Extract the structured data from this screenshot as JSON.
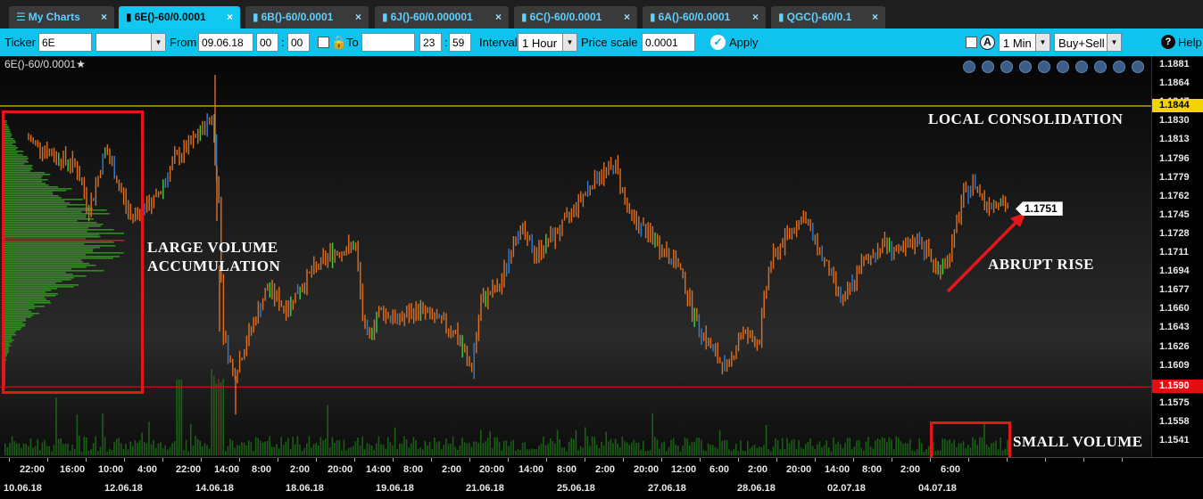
{
  "tabs": [
    {
      "label": "My Charts",
      "icon": "menu-icon",
      "active": false
    },
    {
      "label": "6E()-60/0.0001",
      "icon": "chart-icon",
      "active": true
    },
    {
      "label": "6B()-60/0.0001",
      "icon": "chart-icon",
      "active": false
    },
    {
      "label": "6J()-60/0.000001",
      "icon": "chart-icon",
      "active": false
    },
    {
      "label": "6C()-60/0.0001",
      "icon": "chart-icon",
      "active": false
    },
    {
      "label": "6A()-60/0.0001",
      "icon": "chart-icon",
      "active": false
    },
    {
      "label": "QGC()-60/0.1",
      "icon": "chart-icon",
      "active": false
    }
  ],
  "toolbar": {
    "ticker_label": "Ticker",
    "ticker_value": "6E",
    "from_label": "From",
    "from_date": "09.06.18",
    "from_hour": "00",
    "from_min": "00",
    "to_label": "To",
    "to_date": "",
    "to_hour": "23",
    "to_min": "59",
    "interval_label": "Interval",
    "interval_value": "1 Hour",
    "price_scale_label": "Price scale",
    "price_scale_value": "0.0001",
    "apply_label": "Apply",
    "timeframe_value": "1 Min",
    "side_value": "Buy+Sell",
    "help_label": "Help"
  },
  "chart": {
    "symbol_label": "6E()-60/0.0001",
    "last_price": "1.1751",
    "resistance_tag": "1.1844",
    "support_tag": "1.1590",
    "price_labels": [
      "1.1881",
      "1.1864",
      "1.1847",
      "1.1830",
      "1.1813",
      "1.1796",
      "1.1779",
      "1.1762",
      "1.1745",
      "1.1728",
      "1.1711",
      "1.1694",
      "1.1677",
      "1.1660",
      "1.1643",
      "1.1626",
      "1.1609",
      "1.1592",
      "1.1575",
      "1.1558",
      "1.1541"
    ],
    "time_labels": [
      "22:00",
      "16:00",
      "10:00",
      "4:00",
      "22:00",
      "14:00",
      "8:00",
      "2:00",
      "20:00",
      "14:00",
      "8:00",
      "2:00",
      "20:00",
      "14:00",
      "8:00",
      "2:00",
      "20:00",
      "12:00",
      "6:00",
      "2:00",
      "20:00",
      "14:00",
      "8:00",
      "2:00",
      "6:00"
    ],
    "date_labels": [
      "10.06.18",
      "12.06.18",
      "14.06.18",
      "18.06.18",
      "19.06.18",
      "21.06.18",
      "25.06.18",
      "27.06.18",
      "28.06.18",
      "02.07.18",
      "04.07.18"
    ],
    "annotations": {
      "local_consolidation": "LOCAL CONSOLIDATION",
      "large_volume_1": "LARGE VOLUME",
      "large_volume_2": "ACCUMULATION",
      "abrupt_rise": "ABRUPT RISE",
      "small_volume": "SMALL VOLUME"
    },
    "colors": {
      "resistance": "#f2d400",
      "support": "#e01010",
      "bar_up": "#e07020",
      "profile": "#2fa31a",
      "accent": "#10c3ee"
    }
  },
  "chart_data": {
    "type": "candlestick",
    "ylim": [
      1.153,
      1.189
    ],
    "levels": {
      "resistance": 1.1844,
      "support": 1.159
    },
    "last": 1.1751,
    "path": [
      [
        0,
        1.1805
      ],
      [
        30,
        1.1815
      ],
      [
        60,
        1.18
      ],
      [
        85,
        1.179
      ],
      [
        100,
        1.175
      ],
      [
        118,
        1.1805
      ],
      [
        130,
        1.178
      ],
      [
        145,
        1.1745
      ],
      [
        160,
        1.175
      ],
      [
        175,
        1.176
      ],
      [
        195,
        1.1795
      ],
      [
        215,
        1.181
      ],
      [
        238,
        1.1835
      ],
      [
        245,
        1.176
      ],
      [
        250,
        1.164
      ],
      [
        262,
        1.16
      ],
      [
        280,
        1.164
      ],
      [
        300,
        1.168
      ],
      [
        320,
        1.166
      ],
      [
        345,
        1.169
      ],
      [
        370,
        1.171
      ],
      [
        398,
        1.1718
      ],
      [
        410,
        1.163
      ],
      [
        425,
        1.166
      ],
      [
        445,
        1.165
      ],
      [
        470,
        1.166
      ],
      [
        490,
        1.165
      ],
      [
        510,
        1.164
      ],
      [
        528,
        1.1605
      ],
      [
        540,
        1.167
      ],
      [
        560,
        1.168
      ],
      [
        580,
        1.1735
      ],
      [
        600,
        1.171
      ],
      [
        630,
        1.1735
      ],
      [
        650,
        1.176
      ],
      [
        668,
        1.178
      ],
      [
        690,
        1.179
      ],
      [
        705,
        1.1745
      ],
      [
        730,
        1.1725
      ],
      [
        760,
        1.17
      ],
      [
        780,
        1.165
      ],
      [
        800,
        1.162
      ],
      [
        815,
        1.1605
      ],
      [
        830,
        1.164
      ],
      [
        850,
        1.163
      ],
      [
        862,
        1.17
      ],
      [
        880,
        1.1725
      ],
      [
        900,
        1.1745
      ],
      [
        920,
        1.171
      ],
      [
        945,
        1.1665
      ],
      [
        965,
        1.17
      ],
      [
        990,
        1.172
      ],
      [
        1010,
        1.171
      ],
      [
        1030,
        1.1725
      ],
      [
        1050,
        1.1695
      ],
      [
        1065,
        1.171
      ],
      [
        1078,
        1.176
      ],
      [
        1092,
        1.1775
      ],
      [
        1105,
        1.1755
      ],
      [
        1118,
        1.176
      ],
      [
        1130,
        1.1752
      ]
    ]
  }
}
